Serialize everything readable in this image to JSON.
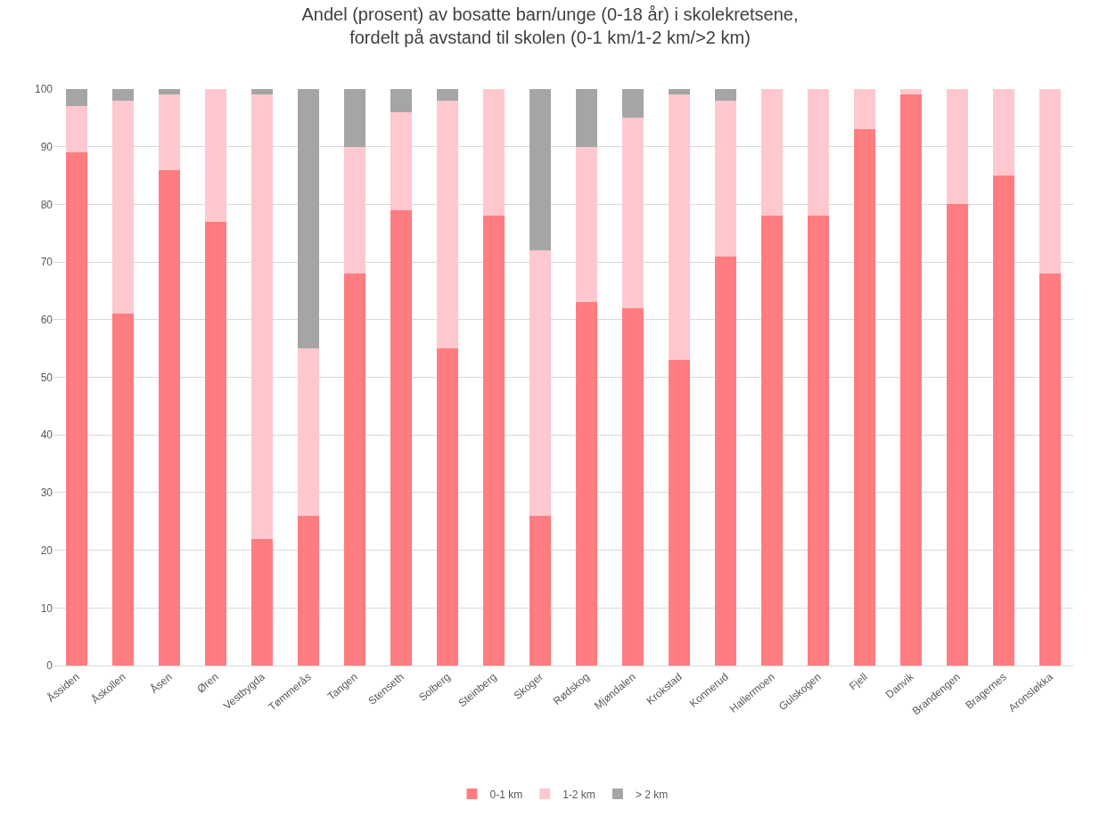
{
  "chart_data": {
    "type": "bar",
    "stacked": true,
    "title": "Andel (prosent) av bosatte barn/unge (0-18 år) i skolekretsene,\nfordelt på avstand til skolen (0-1 km/1-2 km/>2 km)",
    "categories": [
      "Åssiden",
      "Åskollen",
      "Åsen",
      "Øren",
      "Vestbygda",
      "Tømmerås",
      "Tangen",
      "Stenseth",
      "Solberg",
      "Steinberg",
      "Skoger",
      "Rødskog",
      "Mjøndalen",
      "Krokstad",
      "Konnerud",
      "Hallermoen",
      "Gulskogen",
      "Fjell",
      "Danvik",
      "Brandengen",
      "Bragernes",
      "Aronsløkka"
    ],
    "series": [
      {
        "name": "0-1 km",
        "color": "#ff7c80",
        "values": [
          89,
          61,
          86,
          77,
          22,
          26,
          68,
          79,
          55,
          78,
          26,
          63,
          62,
          53,
          71,
          78,
          78,
          93,
          99,
          80,
          85,
          68
        ]
      },
      {
        "name": "1-2 km",
        "color": "#ffc7ce",
        "values": [
          8,
          37,
          13,
          23,
          77,
          29,
          22,
          17,
          43,
          22,
          46,
          27,
          33,
          46,
          27,
          22,
          22,
          7,
          1,
          20,
          15,
          32
        ]
      },
      {
        "name": "> 2 km",
        "color": "#a5a5a5",
        "values": [
          3,
          2,
          1,
          0,
          1,
          45,
          10,
          4,
          2,
          0,
          28,
          10,
          5,
          1,
          2,
          0,
          0,
          0,
          0,
          0,
          0,
          0
        ]
      }
    ],
    "ylim": [
      0,
      100
    ],
    "yticks": [
      0,
      10,
      20,
      30,
      40,
      50,
      60,
      70,
      80,
      90,
      100
    ],
    "grid": "y",
    "legend": "bottom"
  }
}
